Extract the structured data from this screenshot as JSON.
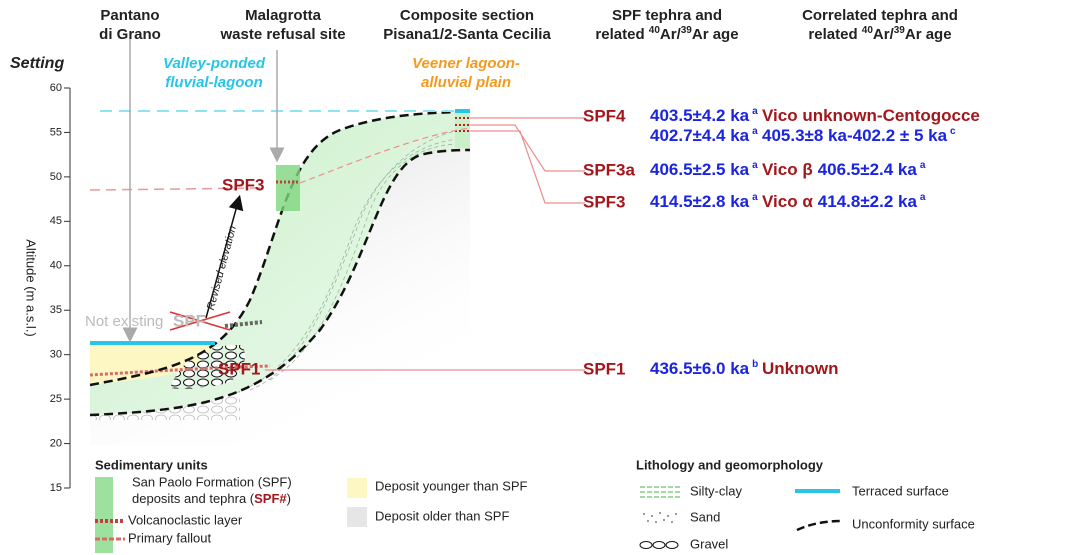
{
  "headers": {
    "pantano": [
      "Pantano",
      "di Grano"
    ],
    "malagrotta": [
      "Malagrotta",
      "waste refusal site"
    ],
    "composite": [
      "Composite section",
      "Pisana1/2-Santa Cecilia"
    ],
    "spf_age": {
      "line1": "SPF tephra and",
      "line2": [
        "related ",
        "40",
        "Ar/",
        "39",
        "Ar age"
      ]
    },
    "correlated": {
      "line1": "Correlated tephra and",
      "line2": [
        "related ",
        "40",
        "Ar/",
        "39",
        "Ar age"
      ]
    }
  },
  "setting": "Setting",
  "valley": [
    "Valley-ponded",
    "fluvial-lagoon"
  ],
  "veener": [
    "Veener lagoon-",
    "alluvial plain"
  ],
  "axis": {
    "label": "Altitude (m a.s.l.)",
    "ticks": [
      15,
      20,
      25,
      30,
      35,
      40,
      45,
      50,
      55,
      60
    ]
  },
  "section_labels": {
    "spf3": "SPF3",
    "spf1": "SPF1",
    "not_existing": "Not existing",
    "crossed": "SPF",
    "revised": "Revised elevation"
  },
  "rows": [
    {
      "tephra": "SPF4",
      "ages": [
        {
          "text": "403.5±4.2 ka",
          "note": "a"
        },
        {
          "text": "402.7±4.4 ka",
          "note": "a"
        }
      ],
      "correlated": [
        {
          "text": "Vico unknown-Centogocce",
          "note": ""
        },
        {
          "text": "405.3±8 ka-402.2 ± 5 ka",
          "note": "c"
        }
      ]
    },
    {
      "tephra": "SPF3a",
      "ages": [
        {
          "text": "406.5±2.5 ka",
          "note": "a"
        }
      ],
      "correlated": [
        {
          "text": "Vico β",
          "note": ""
        },
        {
          "text": "406.5±2.4 ka",
          "note": "a"
        }
      ]
    },
    {
      "tephra": "SPF3",
      "ages": [
        {
          "text": "414.5±2.8 ka",
          "note": "a"
        }
      ],
      "correlated": [
        {
          "text": "Vico α",
          "note": ""
        },
        {
          "text": "414.8±2.2 ka",
          "note": "a"
        }
      ]
    },
    {
      "tephra": "SPF1",
      "ages": [
        {
          "text": "436.5±6.0 ka",
          "note": "b"
        }
      ],
      "correlated": [
        {
          "text": "Unknown",
          "note": ""
        }
      ]
    }
  ],
  "legend": {
    "sedimentary": {
      "title": "Sedimentary units",
      "spf": [
        "San Paolo Formation (SPF)",
        "deposits and tephra (",
        "SPF#",
        ")"
      ],
      "volcanoclastic": "Volcanoclastic layer",
      "fallout": "Primary fallout",
      "younger": "Deposit younger than SPF",
      "older": "Deposit older than SPF"
    },
    "lithology": {
      "title": "Lithology and geomorphology",
      "silty": "Silty-clay",
      "sand": "Sand",
      "gravel": "Gravel",
      "terraced": "Terraced surface",
      "unconformity": "Unconformity surface"
    }
  }
}
